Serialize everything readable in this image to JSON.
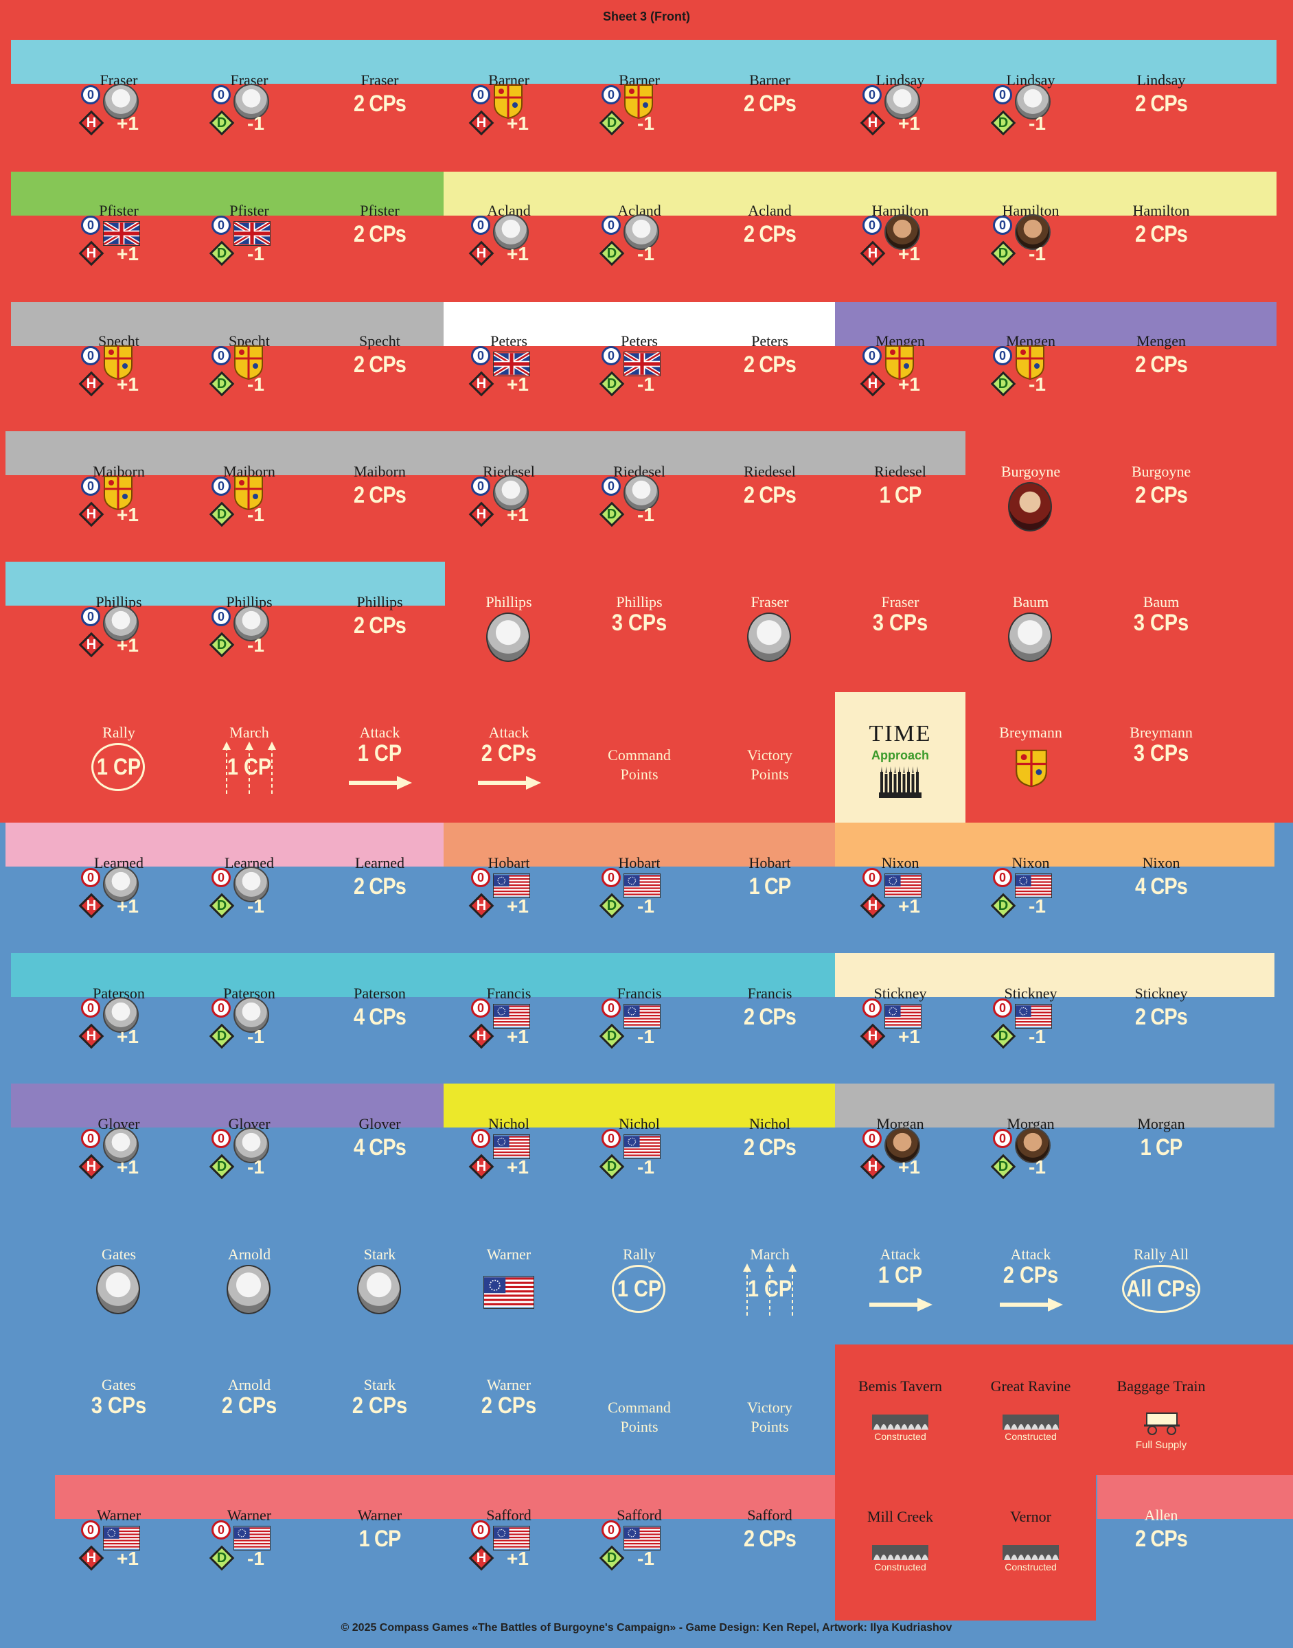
{
  "sheet_title": "Sheet 3 (Front)",
  "footer": "© 2025 Compass Games «The Battles of Burgoyne's Campaign» - Game Design: Ken Repel, Artwork: Ilya Kudriashov",
  "colors": {
    "british_bg": "#e8473f",
    "american_bg": "#5c93c8",
    "cream": "#fff6d0"
  },
  "rows": [
    {
      "cells": [
        {
          "name": "Fraser",
          "kind": "leader",
          "mod": "H",
          "val": "+1",
          "icon": "portrait"
        },
        {
          "name": "Fraser",
          "kind": "leader",
          "mod": "D",
          "val": "-1",
          "icon": "portrait"
        },
        {
          "name": "Fraser",
          "kind": "cps",
          "cps": "2 CPs"
        },
        {
          "name": "Barner",
          "kind": "leader",
          "mod": "H",
          "val": "+1",
          "icon": "arms"
        },
        {
          "name": "Barner",
          "kind": "leader",
          "mod": "D",
          "val": "-1",
          "icon": "arms"
        },
        {
          "name": "Barner",
          "kind": "cps",
          "cps": "2 CPs"
        },
        {
          "name": "Lindsay",
          "kind": "leader",
          "mod": "H",
          "val": "+1",
          "icon": "portrait"
        },
        {
          "name": "Lindsay",
          "kind": "leader",
          "mod": "D",
          "val": "-1",
          "icon": "portrait"
        },
        {
          "name": "Lindsay",
          "kind": "cps",
          "cps": "2 CPs"
        }
      ]
    },
    {
      "cells": [
        {
          "name": "Pfister",
          "kind": "leader",
          "mod": "H",
          "val": "+1",
          "icon": "uk"
        },
        {
          "name": "Pfister",
          "kind": "leader",
          "mod": "D",
          "val": "-1",
          "icon": "uk"
        },
        {
          "name": "Pfister",
          "kind": "cps",
          "cps": "2 CPs"
        },
        {
          "name": "Acland",
          "kind": "leader",
          "mod": "H",
          "val": "+1",
          "icon": "portrait"
        },
        {
          "name": "Acland",
          "kind": "leader",
          "mod": "D",
          "val": "-1",
          "icon": "portrait"
        },
        {
          "name": "Acland",
          "kind": "cps",
          "cps": "2 CPs"
        },
        {
          "name": "Hamilton",
          "kind": "leader",
          "mod": "H",
          "val": "+1",
          "icon": "dark"
        },
        {
          "name": "Hamilton",
          "kind": "leader",
          "mod": "D",
          "val": "-1",
          "icon": "dark"
        },
        {
          "name": "Hamilton",
          "kind": "cps",
          "cps": "2 CPs"
        }
      ]
    },
    {
      "cells": [
        {
          "name": "Specht",
          "kind": "leader",
          "mod": "H",
          "val": "+1",
          "icon": "arms"
        },
        {
          "name": "Specht",
          "kind": "leader",
          "mod": "D",
          "val": "-1",
          "icon": "arms"
        },
        {
          "name": "Specht",
          "kind": "cps",
          "cps": "2 CPs"
        },
        {
          "name": "Peters",
          "kind": "leader",
          "mod": "H",
          "val": "+1",
          "icon": "uk"
        },
        {
          "name": "Peters",
          "kind": "leader",
          "mod": "D",
          "val": "-1",
          "icon": "uk"
        },
        {
          "name": "Peters",
          "kind": "cps",
          "cps": "2 CPs"
        },
        {
          "name": "Mengen",
          "kind": "leader",
          "mod": "H",
          "val": "+1",
          "icon": "arms"
        },
        {
          "name": "Mengen",
          "kind": "leader",
          "mod": "D",
          "val": "-1",
          "icon": "arms"
        },
        {
          "name": "Mengen",
          "kind": "cps",
          "cps": "2 CPs"
        }
      ]
    },
    {
      "cells": [
        {
          "name": "Maiborn",
          "kind": "leader",
          "mod": "H",
          "val": "+1",
          "icon": "arms"
        },
        {
          "name": "Maiborn",
          "kind": "leader",
          "mod": "D",
          "val": "-1",
          "icon": "arms"
        },
        {
          "name": "Maiborn",
          "kind": "cps",
          "cps": "2 CPs"
        },
        {
          "name": "Riedesel",
          "kind": "leader",
          "mod": "H",
          "val": "+1",
          "icon": "portrait"
        },
        {
          "name": "Riedesel",
          "kind": "leader",
          "mod": "D",
          "val": "-1",
          "icon": "portrait"
        },
        {
          "name": "Riedesel",
          "kind": "cps",
          "cps": "2 CPs"
        },
        {
          "name": "Riedesel",
          "kind": "cps",
          "cps": "1 CP"
        },
        {
          "name": "Burgoyne",
          "kind": "bigportrait",
          "icon": "red"
        },
        {
          "name": "Burgoyne",
          "kind": "cps",
          "cps": "2 CPs"
        }
      ]
    },
    {
      "cells": [
        {
          "name": "Phillips",
          "kind": "leader",
          "mod": "H",
          "val": "+1",
          "icon": "portrait"
        },
        {
          "name": "Phillips",
          "kind": "leader",
          "mod": "D",
          "val": "-1",
          "icon": "portrait"
        },
        {
          "name": "Phillips",
          "kind": "cps",
          "cps": "2 CPs"
        },
        {
          "name": "Phillips",
          "kind": "bigportrait",
          "icon": "portrait"
        },
        {
          "name": "Phillips",
          "kind": "cpcenter",
          "cps": "3 CPs"
        },
        {
          "name": "Fraser",
          "kind": "bigportrait",
          "icon": "portrait"
        },
        {
          "name": "Fraser",
          "kind": "cpcenter",
          "cps": "3 CPs"
        },
        {
          "name": "Baum",
          "kind": "bigportrait",
          "icon": "portrait"
        },
        {
          "name": "Baum",
          "kind": "cpcenter",
          "cps": "3 CPs"
        }
      ]
    },
    {
      "cells": [
        {
          "name": "Rally",
          "kind": "circle",
          "cps": "1 CP"
        },
        {
          "name": "March",
          "kind": "march",
          "cps": "1 CP"
        },
        {
          "name": "Attack",
          "kind": "arrow",
          "cps": "1 CP"
        },
        {
          "name": "Attack",
          "kind": "arrow",
          "cps": "2 CPs"
        },
        {
          "name": "",
          "kind": "label",
          "text": "Command Points"
        },
        {
          "name": "",
          "kind": "label",
          "text": "Victory Points"
        },
        {
          "name": "TIME",
          "kind": "time",
          "sub": "Approach"
        },
        {
          "name": "Breymann",
          "kind": "bigarms"
        },
        {
          "name": "Breymann",
          "kind": "cpcenter",
          "cps": "3 CPs"
        }
      ]
    },
    {
      "cells": [
        {
          "name": "Learned",
          "kind": "leader",
          "mod": "H",
          "val": "+1",
          "icon": "portrait",
          "am": true
        },
        {
          "name": "Learned",
          "kind": "leader",
          "mod": "D",
          "val": "-1",
          "icon": "portrait",
          "am": true
        },
        {
          "name": "Learned",
          "kind": "cps",
          "cps": "2 CPs"
        },
        {
          "name": "Hobart",
          "kind": "leader",
          "mod": "H",
          "val": "+1",
          "icon": "us",
          "am": true
        },
        {
          "name": "Hobart",
          "kind": "leader",
          "mod": "D",
          "val": "-1",
          "icon": "us",
          "am": true
        },
        {
          "name": "Hobart",
          "kind": "cps",
          "cps": "1 CP"
        },
        {
          "name": "Nixon",
          "kind": "leader",
          "mod": "H",
          "val": "+1",
          "icon": "us",
          "am": true
        },
        {
          "name": "Nixon",
          "kind": "leader",
          "mod": "D",
          "val": "-1",
          "icon": "us",
          "am": true
        },
        {
          "name": "Nixon",
          "kind": "cps",
          "cps": "4 CPs"
        }
      ]
    },
    {
      "cells": [
        {
          "name": "Paterson",
          "kind": "leader",
          "mod": "H",
          "val": "+1",
          "icon": "portrait",
          "am": true
        },
        {
          "name": "Paterson",
          "kind": "leader",
          "mod": "D",
          "val": "-1",
          "icon": "portrait",
          "am": true
        },
        {
          "name": "Paterson",
          "kind": "cps",
          "cps": "4 CPs"
        },
        {
          "name": "Francis",
          "kind": "leader",
          "mod": "H",
          "val": "+1",
          "icon": "us",
          "am": true
        },
        {
          "name": "Francis",
          "kind": "leader",
          "mod": "D",
          "val": "-1",
          "icon": "us",
          "am": true
        },
        {
          "name": "Francis",
          "kind": "cps",
          "cps": "2 CPs"
        },
        {
          "name": "Stickney",
          "kind": "leader",
          "mod": "H",
          "val": "+1",
          "icon": "us",
          "am": true
        },
        {
          "name": "Stickney",
          "kind": "leader",
          "mod": "D",
          "val": "-1",
          "icon": "us",
          "am": true
        },
        {
          "name": "Stickney",
          "kind": "cps",
          "cps": "2 CPs"
        }
      ]
    },
    {
      "cells": [
        {
          "name": "Glover",
          "kind": "leader",
          "mod": "H",
          "val": "+1",
          "icon": "portrait",
          "am": true
        },
        {
          "name": "Glover",
          "kind": "leader",
          "mod": "D",
          "val": "-1",
          "icon": "portrait",
          "am": true
        },
        {
          "name": "Glover",
          "kind": "cps",
          "cps": "4 CPs"
        },
        {
          "name": "Nichol",
          "kind": "leader",
          "mod": "H",
          "val": "+1",
          "icon": "us",
          "am": true
        },
        {
          "name": "Nichol",
          "kind": "leader",
          "mod": "D",
          "val": "-1",
          "icon": "us",
          "am": true
        },
        {
          "name": "Nichol",
          "kind": "cps",
          "cps": "2 CPs"
        },
        {
          "name": "Morgan",
          "kind": "leader",
          "mod": "H",
          "val": "+1",
          "icon": "dark",
          "am": true
        },
        {
          "name": "Morgan",
          "kind": "leader",
          "mod": "D",
          "val": "-1",
          "icon": "dark",
          "am": true
        },
        {
          "name": "Morgan",
          "kind": "cps",
          "cps": "1 CP"
        }
      ]
    },
    {
      "cells": [
        {
          "name": "Gates",
          "kind": "bigportrait",
          "icon": "portrait"
        },
        {
          "name": "Arnold",
          "kind": "bigportrait",
          "icon": "portrait"
        },
        {
          "name": "Stark",
          "kind": "bigportrait",
          "icon": "portrait"
        },
        {
          "name": "Warner",
          "kind": "bigflag"
        },
        {
          "name": "Rally",
          "kind": "circle",
          "cps": "1 CP"
        },
        {
          "name": "March",
          "kind": "march",
          "cps": "1 CP"
        },
        {
          "name": "Attack",
          "kind": "arrow",
          "cps": "1 CP"
        },
        {
          "name": "Attack",
          "kind": "arrow",
          "cps": "2 CPs"
        },
        {
          "name": "Rally All",
          "kind": "oval",
          "cps": "All CPs"
        }
      ]
    },
    {
      "cells": [
        {
          "name": "Gates",
          "kind": "cpcenter",
          "cps": "3 CPs"
        },
        {
          "name": "Arnold",
          "kind": "cpcenter",
          "cps": "2 CPs"
        },
        {
          "name": "Stark",
          "kind": "cpcenter",
          "cps": "2 CPs"
        },
        {
          "name": "Warner",
          "kind": "cpcenter",
          "cps": "2 CPs"
        },
        {
          "name": "",
          "kind": "label",
          "text": "Command Points"
        },
        {
          "name": "",
          "kind": "label",
          "text": "Victory Points"
        },
        {
          "name": "Bemis Tavern",
          "kind": "fort",
          "sub": "Constructed"
        },
        {
          "name": "Great Ravine",
          "kind": "fort",
          "sub": "Constructed"
        },
        {
          "name": "Baggage Train",
          "kind": "wagon",
          "sub": "Full Supply"
        }
      ]
    },
    {
      "cells": [
        {
          "name": "Warner",
          "kind": "leader",
          "mod": "H",
          "val": "+1",
          "icon": "us",
          "am": true
        },
        {
          "name": "Warner",
          "kind": "leader",
          "mod": "D",
          "val": "-1",
          "icon": "us",
          "am": true
        },
        {
          "name": "Warner",
          "kind": "cps",
          "cps": "1 CP"
        },
        {
          "name": "Safford",
          "kind": "leader",
          "mod": "H",
          "val": "+1",
          "icon": "us",
          "am": true
        },
        {
          "name": "Safford",
          "kind": "leader",
          "mod": "D",
          "val": "-1",
          "icon": "us",
          "am": true
        },
        {
          "name": "Safford",
          "kind": "cps",
          "cps": "2 CPs"
        },
        {
          "name": "Mill Creek",
          "kind": "fort",
          "sub": "Constructed"
        },
        {
          "name": "Vernor",
          "kind": "fort",
          "sub": "Constructed"
        },
        {
          "name": "Allen",
          "kind": "cps",
          "cps": "2 CPs"
        }
      ]
    }
  ]
}
